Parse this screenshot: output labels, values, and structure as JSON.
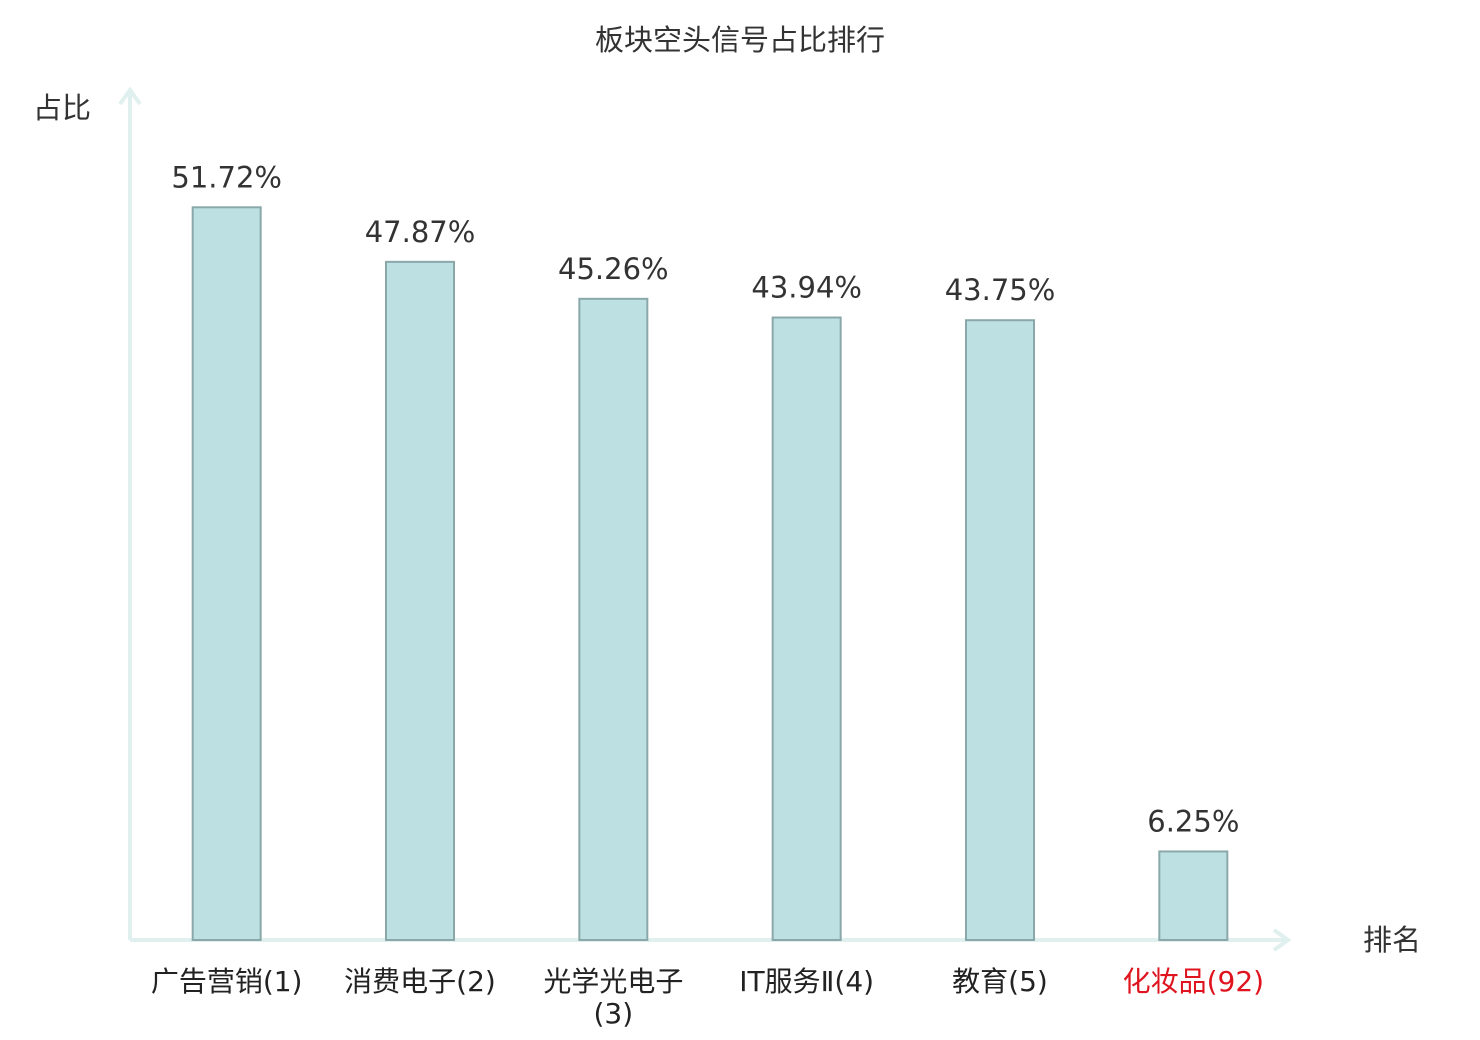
{
  "chart_data": {
    "type": "bar",
    "title": "板块空头信号占比排行",
    "y_label": "占比",
    "x_label": "排名",
    "categories": [
      "广告营销(1)",
      "消费电子(2)",
      "光学光电子(3)",
      "IT服务Ⅱ(4)",
      "教育(5)",
      "化妆品(92)"
    ],
    "values": [
      51.72,
      47.87,
      45.26,
      43.94,
      43.75,
      6.25
    ],
    "value_labels": [
      "51.72%",
      "47.87%",
      "45.26%",
      "43.94%",
      "43.75%",
      "6.25%"
    ],
    "color": "#bde0e2",
    "label_colors": [
      "#222222",
      "#222222",
      "#222222",
      "#222222",
      "#222222",
      "#e0141e"
    ],
    "ylim": [
      0,
      60
    ]
  }
}
